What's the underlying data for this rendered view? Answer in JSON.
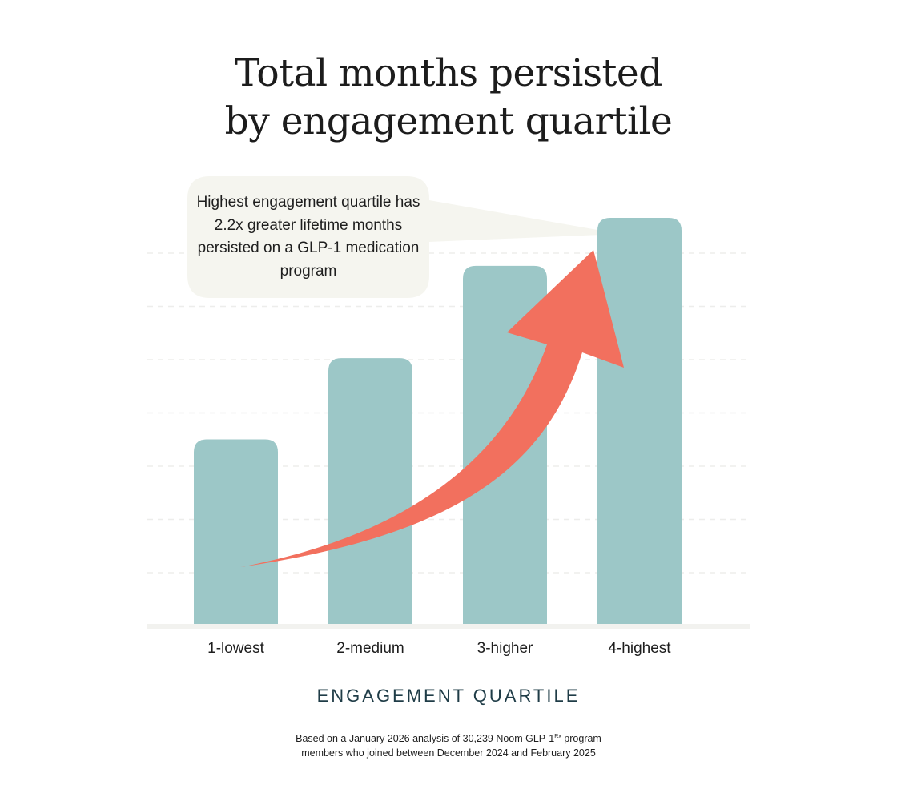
{
  "chart_data": {
    "type": "bar",
    "title_lines": [
      "Total months persisted",
      "by engagement quartile"
    ],
    "categories": [
      "1-lowest",
      "2-medium",
      "3-higher",
      "4-highest"
    ],
    "values": [
      1.0,
      1.44,
      1.94,
      2.2
    ],
    "ylim": [
      0,
      2.2
    ],
    "xlabel": "ENGAGEMENT QUARTILE",
    "grid": true,
    "annotation": "Highest engagement quartile has 2.2x greater lifetime months persisted on a GLP-1 medication program",
    "footnote_lines": [
      "Based on a January 2026 analysis of 30,239 Noom GLP-1",
      "Rx",
      " program",
      "members who joined between December 2024 and February 2025"
    ]
  },
  "colors": {
    "bar": "#9cc7c7",
    "arrow": "#f2705e",
    "callout_bg": "#f5f5ef",
    "grid": "#ededeb",
    "baseline": "#f2f2ef",
    "xlabel": "#1f3c47"
  }
}
